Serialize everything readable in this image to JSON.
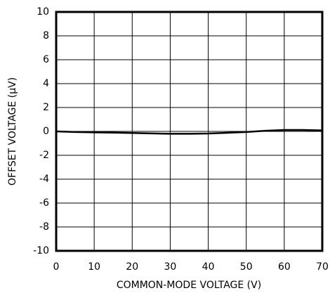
{
  "chart_data": {
    "type": "line",
    "xlabel": "COMMON-MODE VOLTAGE (V)",
    "ylabel": "OFFSET VOLTAGE (µV)",
    "x": [
      0,
      5,
      10,
      15,
      20,
      25,
      30,
      35,
      40,
      45,
      50,
      55,
      60,
      65,
      70
    ],
    "series": [
      {
        "color": "#000000",
        "values": [
          0,
          -0.05,
          -0.08,
          -0.1,
          -0.13,
          -0.17,
          -0.2,
          -0.2,
          -0.18,
          -0.12,
          -0.05,
          0.05,
          0.12,
          0.12,
          0.08
        ]
      }
    ],
    "xlim": [
      0,
      70
    ],
    "xticks": [
      0,
      10,
      20,
      30,
      40,
      50,
      60,
      70
    ],
    "ylim": [
      -10,
      10
    ],
    "yticks": [
      -10,
      -8,
      -6,
      -4,
      -2,
      0,
      2,
      4,
      6,
      8,
      10
    ],
    "grid": true
  }
}
